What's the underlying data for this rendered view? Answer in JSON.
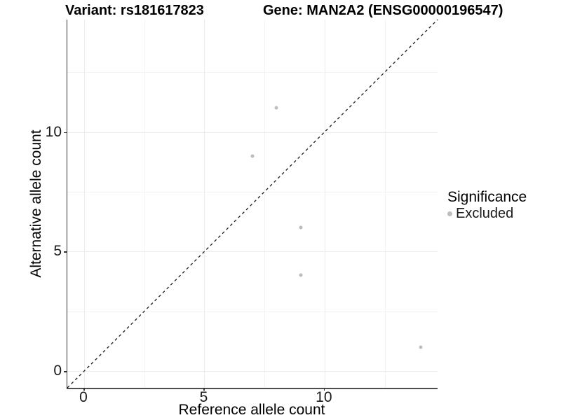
{
  "header": {
    "variant_title": "Variant: rs181617823",
    "gene_title": "Gene: MAN2A2 (ENSG00000196547)"
  },
  "chart_data": {
    "type": "scatter",
    "title": "Variant: rs181617823  |  Gene: MAN2A2 (ENSG00000196547)",
    "xlabel": "Reference allele count",
    "ylabel": "Alternative allele count",
    "xlim": [
      -0.7,
      14.7
    ],
    "ylim": [
      -0.7,
      14.7
    ],
    "xticks": [
      0,
      5,
      10
    ],
    "yticks": [
      0,
      5,
      10
    ],
    "xticks_minor": [
      2.5,
      7.5,
      12.5
    ],
    "yticks_minor": [
      2.5,
      7.5,
      12.5
    ],
    "grid": true,
    "legend_position": "right",
    "identity_line": {
      "style": "dashed",
      "color": "#1a1a1a",
      "from": [
        -0.7,
        -0.7
      ],
      "to": [
        14.7,
        14.7
      ]
    },
    "series": [
      {
        "name": "Excluded",
        "color": "#bdbdbd",
        "points": [
          [
            7,
            9
          ],
          [
            8,
            11
          ],
          [
            9,
            6
          ],
          [
            9,
            4
          ],
          [
            14,
            1
          ]
        ]
      }
    ],
    "legend": {
      "title": "Significance",
      "items": [
        {
          "label": "Excluded",
          "color": "#bdbdbd"
        }
      ]
    }
  },
  "colors": {
    "grid_major": "#ececec",
    "grid_minor": "#f3f3f3",
    "axis_line": "#333333",
    "point": "#bdbdbd",
    "text": "#1a1a1a"
  }
}
